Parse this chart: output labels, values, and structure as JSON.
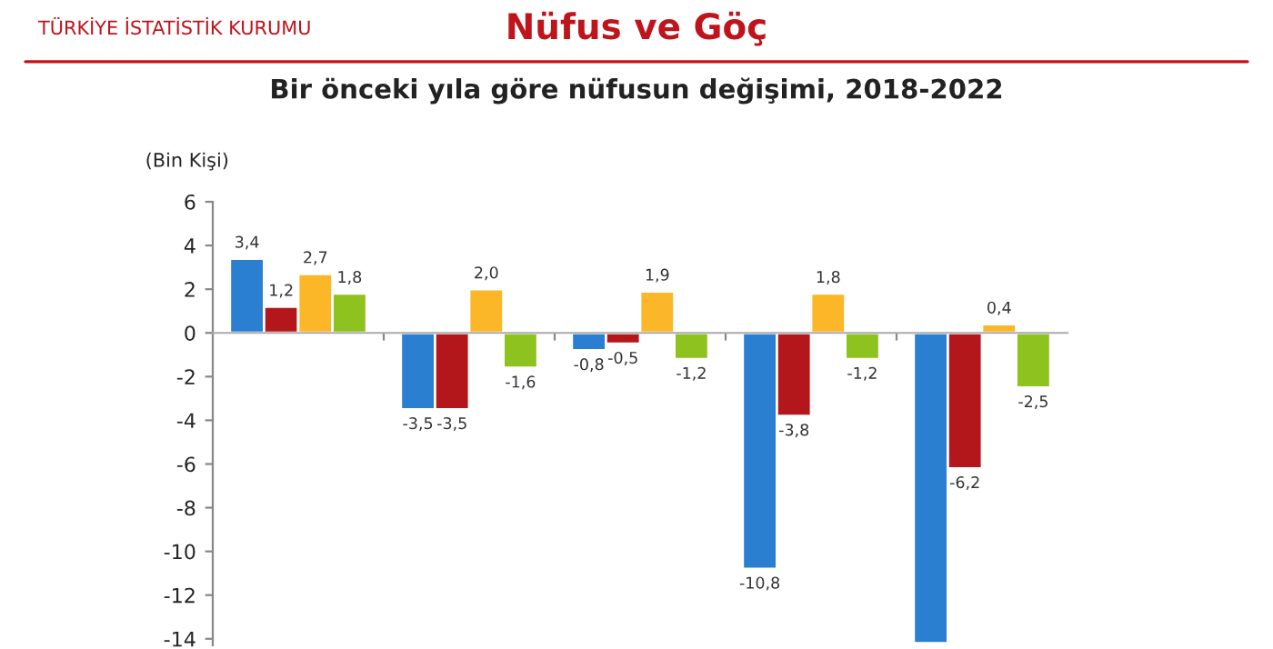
{
  "chart_data": {
    "type": "bar",
    "title": "Nüfus ve Göç",
    "subtitle": "Bir önceki yıla göre nüfusun değişimi, 2018-2022",
    "ylabel": "(Bin Kişi)",
    "annotations": [
      "TÜRKİYE İSTATİSTİK KURUMU"
    ],
    "categories": [
      null,
      null,
      null,
      null,
      null
    ],
    "series": [
      {
        "color": "#2a7fd0",
        "values": [
          3.4,
          -3.5,
          -0.8,
          -10.8,
          -14.2
        ],
        "value_labels": [
          "3,4",
          "-3,5",
          "-0,8",
          "-10,8",
          null
        ]
      },
      {
        "color": "#b3171c",
        "values": [
          1.2,
          -3.5,
          -0.5,
          -3.8,
          -6.2
        ],
        "value_labels": [
          "1,2",
          "-3,5",
          "-0,5",
          "-3,8",
          "-6,2"
        ]
      },
      {
        "color": "#fbb727",
        "values": [
          2.7,
          2.0,
          1.9,
          1.8,
          0.4
        ],
        "value_labels": [
          "2,7",
          "2,0",
          "1,9",
          "1,8",
          "0,4"
        ]
      },
      {
        "color": "#8dc21f",
        "values": [
          1.8,
          -1.6,
          -1.2,
          -1.2,
          -2.5
        ],
        "value_labels": [
          "1,8",
          "-1,6",
          "-1,2",
          "-1,2",
          "-2,5"
        ]
      }
    ],
    "ylim": [
      -14.3,
      6
    ],
    "yticks": [
      6,
      4,
      2,
      0,
      -2,
      -4,
      -6,
      -8,
      -10,
      -12,
      -14
    ],
    "legend": false,
    "tick_labels": "y"
  }
}
